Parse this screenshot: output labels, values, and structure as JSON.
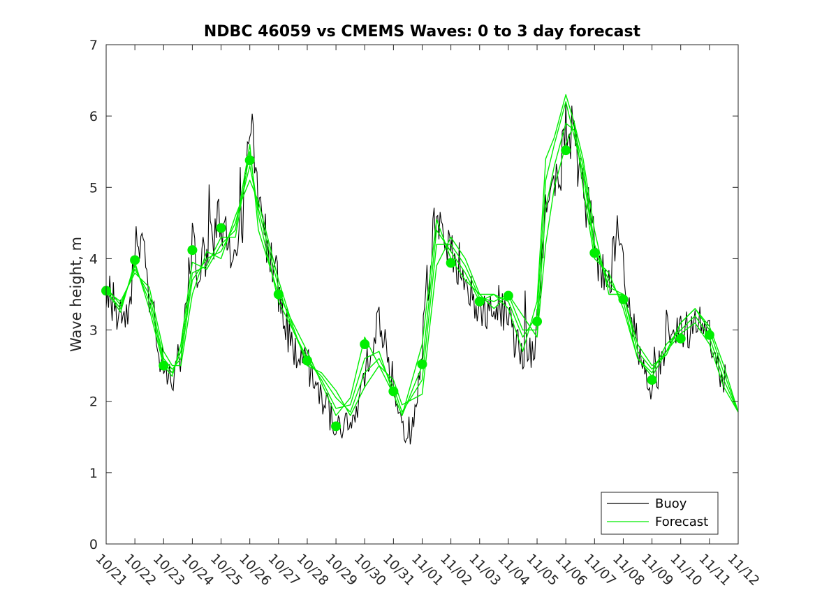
{
  "chart_data": {
    "type": "line",
    "title": "NDBC 46059 vs CMEMS Waves: 0 to 3 day forecast",
    "ylabel": "Wave height, m",
    "xlabel": "",
    "ylim": [
      0,
      7
    ],
    "yticks": [
      0,
      1,
      2,
      3,
      4,
      5,
      6,
      7
    ],
    "xticks": [
      "10/21",
      "10/22",
      "10/23",
      "10/24",
      "10/25",
      "10/26",
      "10/27",
      "10/28",
      "10/29",
      "10/30",
      "10/31",
      "11/01",
      "11/02",
      "11/03",
      "11/04",
      "11/05",
      "11/06",
      "11/07",
      "11/08",
      "11/09",
      "11/10",
      "11/11",
      "11/12"
    ],
    "x_unit": "day index from 10/21",
    "grid": false,
    "legend": {
      "placement": "bottom-right",
      "entries": [
        "Buoy",
        "Forecast"
      ]
    },
    "colors": {
      "buoy": "#000000",
      "forecast": "#00ee00"
    },
    "buoy_anchors": [
      [
        0.0,
        3.6
      ],
      [
        0.25,
        3.4
      ],
      [
        0.5,
        3.2
      ],
      [
        0.75,
        3.3
      ],
      [
        1.0,
        3.9
      ],
      [
        1.2,
        4.4
      ],
      [
        1.4,
        3.8
      ],
      [
        1.6,
        3.3
      ],
      [
        1.8,
        2.8
      ],
      [
        2.0,
        2.5
      ],
      [
        2.2,
        2.35
      ],
      [
        2.4,
        2.4
      ],
      [
        2.6,
        2.7
      ],
      [
        2.8,
        3.4
      ],
      [
        3.0,
        4.2
      ],
      [
        3.2,
        3.9
      ],
      [
        3.5,
        4.1
      ],
      [
        3.7,
        4.3
      ],
      [
        4.0,
        4.6
      ],
      [
        4.2,
        4.2
      ],
      [
        4.4,
        3.9
      ],
      [
        4.6,
        4.3
      ],
      [
        4.8,
        4.7
      ],
      [
        5.0,
        5.9
      ],
      [
        5.15,
        5.5
      ],
      [
        5.3,
        4.6
      ],
      [
        5.5,
        4.4
      ],
      [
        5.7,
        4.0
      ],
      [
        5.9,
        3.8
      ],
      [
        6.0,
        3.5
      ],
      [
        6.3,
        3.0
      ],
      [
        6.6,
        2.7
      ],
      [
        6.9,
        2.6
      ],
      [
        7.2,
        2.3
      ],
      [
        7.5,
        2.1
      ],
      [
        7.8,
        1.8
      ],
      [
        8.0,
        1.65
      ],
      [
        8.3,
        1.65
      ],
      [
        8.5,
        1.6
      ],
      [
        8.7,
        1.8
      ],
      [
        8.9,
        2.3
      ],
      [
        9.1,
        2.6
      ],
      [
        9.3,
        2.9
      ],
      [
        9.5,
        3.2
      ],
      [
        9.7,
        2.8
      ],
      [
        9.9,
        2.3
      ],
      [
        10.1,
        1.9
      ],
      [
        10.3,
        1.6
      ],
      [
        10.6,
        1.6
      ],
      [
        10.8,
        2.0
      ],
      [
        11.0,
        2.8
      ],
      [
        11.2,
        3.7
      ],
      [
        11.4,
        4.5
      ],
      [
        11.6,
        4.4
      ],
      [
        11.8,
        4.3
      ],
      [
        12.0,
        4.0
      ],
      [
        12.2,
        3.9
      ],
      [
        12.4,
        4.0
      ],
      [
        12.6,
        3.6
      ],
      [
        12.8,
        3.3
      ],
      [
        13.0,
        3.3
      ],
      [
        13.2,
        3.2
      ],
      [
        13.5,
        3.4
      ],
      [
        13.8,
        3.2
      ],
      [
        14.0,
        3.1
      ],
      [
        14.3,
        2.8
      ],
      [
        14.6,
        2.7
      ],
      [
        14.8,
        2.6
      ],
      [
        15.0,
        3.0
      ],
      [
        15.2,
        4.2
      ],
      [
        15.4,
        4.9
      ],
      [
        15.6,
        5.0
      ],
      [
        15.8,
        5.1
      ],
      [
        16.0,
        6.0
      ],
      [
        16.2,
        5.7
      ],
      [
        16.4,
        5.3
      ],
      [
        16.6,
        4.9
      ],
      [
        16.8,
        4.6
      ],
      [
        17.0,
        4.2
      ],
      [
        17.2,
        3.8
      ],
      [
        17.4,
        3.7
      ],
      [
        17.6,
        3.9
      ],
      [
        17.8,
        4.6
      ],
      [
        18.0,
        4.0
      ],
      [
        18.2,
        3.2
      ],
      [
        18.4,
        3.0
      ],
      [
        18.6,
        2.6
      ],
      [
        18.8,
        2.3
      ],
      [
        19.0,
        2.2
      ],
      [
        19.2,
        2.4
      ],
      [
        19.4,
        2.6
      ],
      [
        19.6,
        2.8
      ],
      [
        19.8,
        2.9
      ],
      [
        20.0,
        3.0
      ],
      [
        20.2,
        3.0
      ],
      [
        20.4,
        3.0
      ],
      [
        20.6,
        3.1
      ],
      [
        20.8,
        3.2
      ],
      [
        21.0,
        2.9
      ],
      [
        21.2,
        2.5
      ],
      [
        21.4,
        2.4
      ],
      [
        21.6,
        2.3
      ]
    ],
    "forecast_lines": [
      {
        "values": [
          [
            0,
            3.55
          ],
          [
            0.5,
            3.25
          ],
          [
            1,
            3.95
          ],
          [
            1.5,
            3.3
          ],
          [
            2,
            2.5
          ],
          [
            2.3,
            2.35
          ],
          [
            2.6,
            2.8
          ],
          [
            3,
            3.95
          ],
          [
            3.5,
            3.85
          ],
          [
            4,
            4.2
          ],
          [
            4.5,
            4.4
          ],
          [
            5,
            5.6
          ],
          [
            5.3,
            4.4
          ],
          [
            6,
            3.5
          ],
          [
            6.5,
            3.1
          ],
          [
            7,
            2.7
          ],
          [
            7.5,
            2.25
          ],
          [
            8,
            1.8
          ],
          [
            8.5,
            2.05
          ],
          [
            9,
            2.9
          ],
          [
            9.5,
            2.5
          ],
          [
            10,
            2.1
          ],
          [
            10.3,
            1.8
          ],
          [
            11,
            2.8
          ],
          [
            11.5,
            4.55
          ],
          [
            12,
            4.0
          ],
          [
            12.5,
            3.7
          ],
          [
            13,
            3.5
          ],
          [
            13.5,
            3.5
          ],
          [
            14,
            3.3
          ],
          [
            14.5,
            2.7
          ],
          [
            15,
            3.4
          ],
          [
            15.3,
            5.4
          ],
          [
            15.6,
            5.7
          ],
          [
            16,
            6.3
          ],
          [
            16.3,
            5.9
          ],
          [
            16.6,
            5.0
          ],
          [
            17,
            4.0
          ],
          [
            17.5,
            3.8
          ],
          [
            18,
            3.3
          ],
          [
            18.5,
            2.6
          ],
          [
            19,
            2.35
          ],
          [
            19.5,
            2.7
          ],
          [
            20,
            2.95
          ],
          [
            20.5,
            3.1
          ],
          [
            21,
            2.8
          ],
          [
            21.5,
            2.2
          ],
          [
            22,
            1.85
          ]
        ]
      },
      {
        "values": [
          [
            0,
            3.55
          ],
          [
            0.5,
            3.3
          ],
          [
            1,
            3.9
          ],
          [
            1.5,
            3.4
          ],
          [
            2,
            2.55
          ],
          [
            2.3,
            2.4
          ],
          [
            2.6,
            2.7
          ],
          [
            3,
            3.8
          ],
          [
            3.5,
            3.9
          ],
          [
            4,
            4.3
          ],
          [
            4.5,
            4.3
          ],
          [
            5,
            5.5
          ],
          [
            5.3,
            4.6
          ],
          [
            6,
            3.4
          ],
          [
            6.5,
            3.0
          ],
          [
            7,
            2.6
          ],
          [
            7.5,
            2.3
          ],
          [
            8,
            1.9
          ],
          [
            8.5,
            1.95
          ],
          [
            9,
            2.6
          ],
          [
            9.5,
            2.7
          ],
          [
            10,
            2.1
          ],
          [
            10.3,
            1.8
          ],
          [
            11,
            2.5
          ],
          [
            11.5,
            4.4
          ],
          [
            12,
            4.1
          ],
          [
            12.5,
            3.8
          ],
          [
            13,
            3.4
          ],
          [
            13.5,
            3.5
          ],
          [
            14,
            3.4
          ],
          [
            14.5,
            2.9
          ],
          [
            15,
            3.2
          ],
          [
            15.3,
            5.1
          ],
          [
            15.6,
            5.6
          ],
          [
            16,
            6.2
          ],
          [
            16.3,
            5.7
          ],
          [
            16.6,
            5.2
          ],
          [
            17,
            4.1
          ],
          [
            17.5,
            3.7
          ],
          [
            18,
            3.4
          ],
          [
            18.5,
            2.6
          ],
          [
            19,
            2.4
          ],
          [
            19.5,
            2.8
          ],
          [
            20,
            3.0
          ],
          [
            20.5,
            3.2
          ],
          [
            21,
            2.9
          ],
          [
            21.5,
            2.3
          ],
          [
            22,
            1.85
          ]
        ]
      },
      {
        "values": [
          [
            0,
            3.6
          ],
          [
            0.5,
            3.35
          ],
          [
            1,
            3.85
          ],
          [
            1.5,
            3.5
          ],
          [
            2,
            2.6
          ],
          [
            2.3,
            2.45
          ],
          [
            2.6,
            2.6
          ],
          [
            3,
            3.7
          ],
          [
            3.5,
            4.0
          ],
          [
            4,
            4.1
          ],
          [
            4.5,
            4.5
          ],
          [
            5,
            5.3
          ],
          [
            5.3,
            4.7
          ],
          [
            6,
            3.6
          ],
          [
            6.5,
            3.0
          ],
          [
            7,
            2.55
          ],
          [
            7.5,
            2.35
          ],
          [
            8,
            2.05
          ],
          [
            8.5,
            1.85
          ],
          [
            9,
            2.4
          ],
          [
            9.5,
            2.6
          ],
          [
            10,
            2.2
          ],
          [
            10.3,
            1.85
          ],
          [
            11,
            2.3
          ],
          [
            11.5,
            4.2
          ],
          [
            12,
            4.2
          ],
          [
            12.5,
            3.9
          ],
          [
            13,
            3.45
          ],
          [
            13.5,
            3.4
          ],
          [
            14,
            3.5
          ],
          [
            14.5,
            3.0
          ],
          [
            15,
            3.0
          ],
          [
            15.3,
            4.7
          ],
          [
            15.6,
            5.3
          ],
          [
            16,
            5.9
          ],
          [
            16.3,
            5.8
          ],
          [
            16.6,
            5.3
          ],
          [
            17,
            4.2
          ],
          [
            17.5,
            3.6
          ],
          [
            18,
            3.5
          ],
          [
            18.5,
            2.7
          ],
          [
            19,
            2.45
          ],
          [
            19.5,
            2.7
          ],
          [
            20,
            3.1
          ],
          [
            20.5,
            3.3
          ],
          [
            21,
            3.0
          ],
          [
            21.5,
            2.4
          ],
          [
            22,
            1.85
          ]
        ]
      },
      {
        "values": [
          [
            0,
            3.55
          ],
          [
            0.5,
            3.4
          ],
          [
            1,
            3.8
          ],
          [
            1.5,
            3.6
          ],
          [
            2,
            2.7
          ],
          [
            2.3,
            2.5
          ],
          [
            2.6,
            2.5
          ],
          [
            3,
            3.5
          ],
          [
            3.5,
            4.1
          ],
          [
            4,
            4.0
          ],
          [
            4.5,
            4.6
          ],
          [
            5,
            5.1
          ],
          [
            5.3,
            4.8
          ],
          [
            6,
            3.7
          ],
          [
            6.5,
            3.05
          ],
          [
            7,
            2.5
          ],
          [
            7.5,
            2.4
          ],
          [
            8,
            2.15
          ],
          [
            8.5,
            1.8
          ],
          [
            9,
            2.2
          ],
          [
            9.5,
            2.5
          ],
          [
            10,
            2.3
          ],
          [
            10.3,
            1.95
          ],
          [
            11,
            2.1
          ],
          [
            11.5,
            3.9
          ],
          [
            12,
            4.3
          ],
          [
            12.5,
            4.0
          ],
          [
            13,
            3.5
          ],
          [
            13.5,
            3.3
          ],
          [
            14,
            3.5
          ],
          [
            14.5,
            3.2
          ],
          [
            15,
            2.9
          ],
          [
            15.3,
            4.2
          ],
          [
            15.6,
            5.0
          ],
          [
            16,
            5.6
          ],
          [
            16.3,
            5.9
          ],
          [
            16.6,
            5.4
          ],
          [
            17,
            4.4
          ],
          [
            17.5,
            3.5
          ],
          [
            18,
            3.5
          ],
          [
            18.5,
            2.8
          ],
          [
            19,
            2.5
          ],
          [
            19.5,
            2.65
          ],
          [
            20,
            3.1
          ],
          [
            20.5,
            3.3
          ],
          [
            21,
            3.05
          ],
          [
            21.5,
            2.5
          ],
          [
            22,
            1.85
          ]
        ]
      }
    ],
    "forecast_points": [
      [
        0,
        3.55
      ],
      [
        1,
        3.98
      ],
      [
        2,
        2.5
      ],
      [
        3,
        4.12
      ],
      [
        4,
        4.43
      ],
      [
        5,
        5.38
      ],
      [
        6,
        3.5
      ],
      [
        7,
        2.57
      ],
      [
        8,
        1.65
      ],
      [
        9,
        2.8
      ],
      [
        10,
        2.14
      ],
      [
        11,
        2.52
      ],
      [
        12,
        3.94
      ],
      [
        13,
        3.4
      ],
      [
        14,
        3.48
      ],
      [
        15,
        3.12
      ],
      [
        16,
        5.52
      ],
      [
        17,
        4.08
      ],
      [
        18,
        3.43
      ],
      [
        19,
        2.3
      ],
      [
        20,
        2.88
      ],
      [
        21,
        2.93
      ]
    ]
  }
}
